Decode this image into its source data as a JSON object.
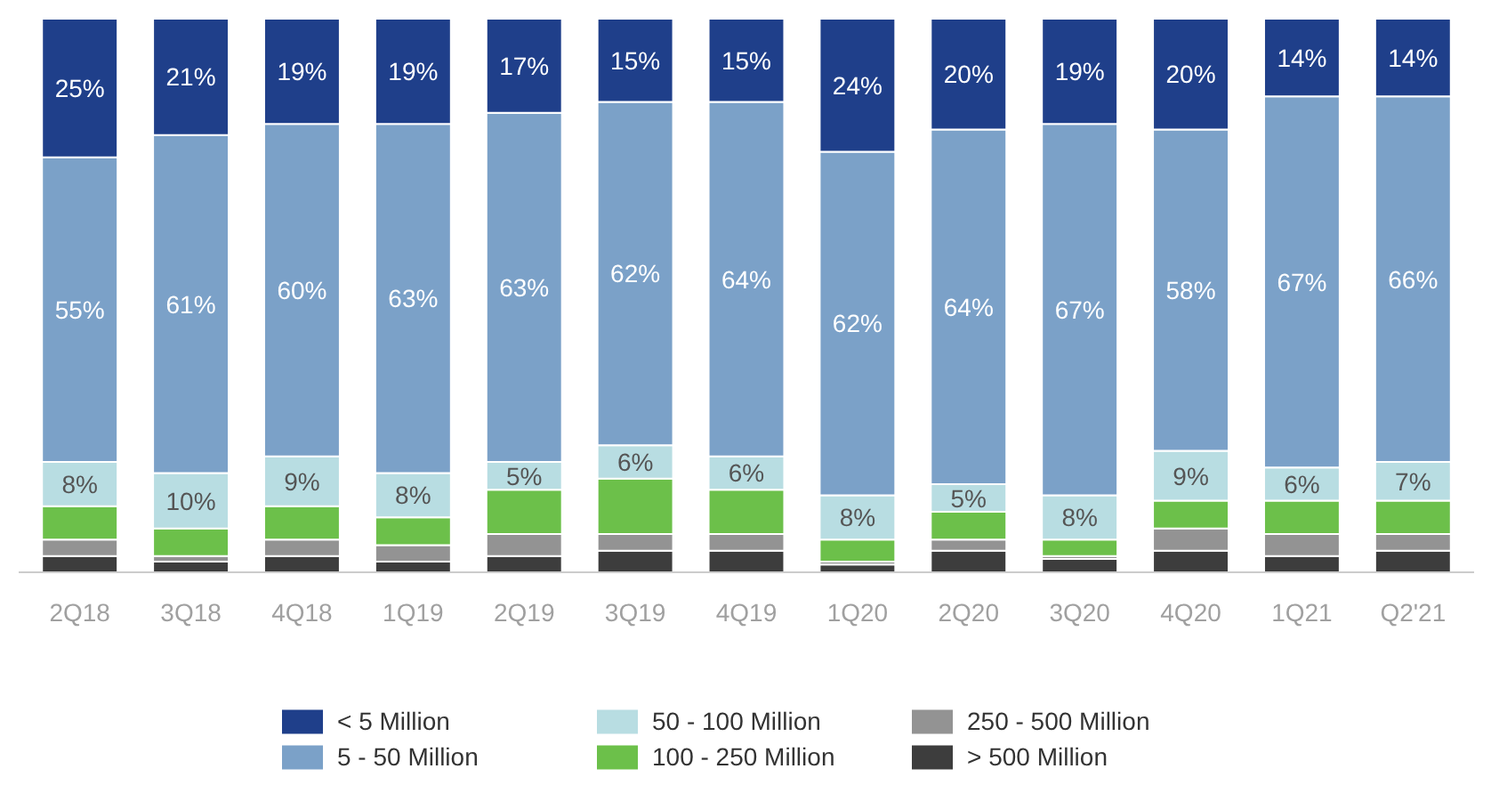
{
  "chart_data": {
    "type": "bar",
    "stacked": true,
    "legend": "bottom",
    "categories": [
      "2Q18",
      "3Q18",
      "4Q18",
      "1Q19",
      "2Q19",
      "3Q19",
      "4Q19",
      "1Q20",
      "2Q20",
      "3Q20",
      "4Q20",
      "1Q21",
      "Q2'21"
    ],
    "series": [
      {
        "name": "> 500 Million",
        "color": "#3d3d3d",
        "values": [
          3,
          2,
          3,
          2,
          3,
          4,
          4,
          1.5,
          4,
          2.5,
          4,
          3,
          4
        ]
      },
      {
        "name": "250 - 500 Million",
        "color": "#939393",
        "values": [
          3,
          1,
          3,
          3,
          4,
          3,
          3,
          0.5,
          2,
          0.5,
          4,
          4,
          3
        ]
      },
      {
        "name": "100 - 250 Million",
        "color": "#6cc04a",
        "values": [
          6,
          5,
          6,
          5,
          8,
          10,
          8,
          4,
          5,
          3,
          5,
          6,
          6
        ]
      },
      {
        "name": "50 - 100 Million",
        "color": "#b8dde2",
        "values": [
          8,
          10,
          9,
          8,
          5,
          6,
          6,
          8,
          5,
          8,
          9,
          6,
          7
        ],
        "value_labels": [
          "8%",
          "10%",
          "9%",
          "8%",
          "5%",
          "6%",
          "6%",
          "8%",
          "5%",
          "8%",
          "9%",
          "6%",
          "7%"
        ]
      },
      {
        "name": "5 - 50 Million",
        "color": "#7ba1c8",
        "values": [
          55,
          61,
          60,
          63,
          63,
          62,
          64,
          62,
          64,
          67,
          58,
          67,
          66
        ],
        "value_labels": [
          "55%",
          "61%",
          "60%",
          "63%",
          "63%",
          "62%",
          "64%",
          "62%",
          "64%",
          "67%",
          "58%",
          "67%",
          "66%"
        ]
      },
      {
        "name": "< 5 Million",
        "color": "#1f3f8a",
        "values": [
          25,
          21,
          19,
          19,
          17,
          15,
          15,
          24,
          20,
          19,
          20,
          14,
          14
        ],
        "value_labels": [
          "25%",
          "21%",
          "19%",
          "19%",
          "17%",
          "15%",
          "15%",
          "24%",
          "20%",
          "19%",
          "20%",
          "14%",
          "14%"
        ]
      }
    ]
  }
}
